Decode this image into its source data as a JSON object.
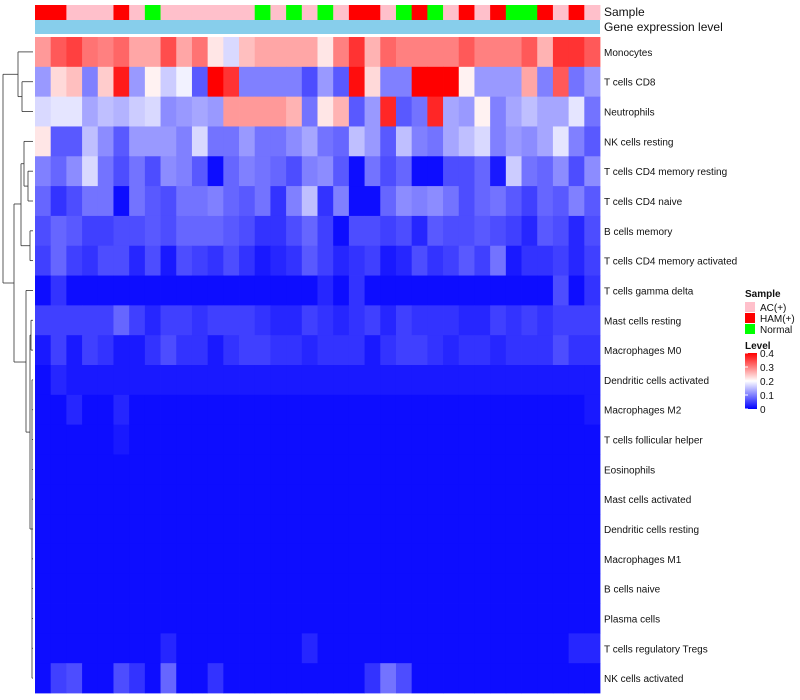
{
  "chart_data": {
    "type": "heatmap",
    "annotation_titles": {
      "sample": "Sample",
      "gene": "Gene expression level"
    },
    "sample_groups": [
      "HAM(+)",
      "HAM(+)",
      "AC(+)",
      "AC(+)",
      "AC(+)",
      "HAM(+)",
      "AC(+)",
      "Normal",
      "AC(+)",
      "AC(+)",
      "AC(+)",
      "AC(+)",
      "AC(+)",
      "AC(+)",
      "Normal",
      "AC(+)",
      "Normal",
      "AC(+)",
      "Normal",
      "AC(+)",
      "HAM(+)",
      "HAM(+)",
      "AC(+)",
      "Normal",
      "HAM(+)",
      "Normal",
      "AC(+)",
      "HAM(+)",
      "AC(+)",
      "HAM(+)",
      "Normal",
      "Normal",
      "HAM(+)",
      "AC(+)",
      "HAM(+)",
      "AC(+)"
    ],
    "rows": [
      {
        "name": "Monocytes",
        "values": [
          0.28,
          0.33,
          0.35,
          0.31,
          0.3,
          0.32,
          0.27,
          0.27,
          0.34,
          0.27,
          0.31,
          0.22,
          0.17,
          0.25,
          0.27,
          0.27,
          0.27,
          0.27,
          0.22,
          0.3,
          0.36,
          0.26,
          0.32,
          0.3,
          0.3,
          0.3,
          0.3,
          0.33,
          0.3,
          0.3,
          0.3,
          0.33,
          0.26,
          0.36,
          0.36,
          0.33
        ]
      },
      {
        "name": "T cells CD8",
        "values": [
          0.12,
          0.23,
          0.25,
          0.1,
          0.24,
          0.38,
          0.12,
          0.21,
          0.16,
          0.19,
          0.07,
          0.4,
          0.36,
          0.1,
          0.1,
          0.1,
          0.1,
          0.06,
          0.12,
          0.07,
          0.39,
          0.23,
          0.1,
          0.1,
          0.4,
          0.4,
          0.4,
          0.21,
          0.12,
          0.12,
          0.12,
          0.27,
          0.1,
          0.33,
          0.09,
          0.12
        ]
      },
      {
        "name": "Neutrophils",
        "values": [
          0.17,
          0.18,
          0.18,
          0.13,
          0.15,
          0.14,
          0.16,
          0.17,
          0.11,
          0.12,
          0.13,
          0.12,
          0.28,
          0.28,
          0.28,
          0.28,
          0.26,
          0.09,
          0.22,
          0.26,
          0.07,
          0.12,
          0.37,
          0.07,
          0.09,
          0.37,
          0.13,
          0.12,
          0.21,
          0.1,
          0.13,
          0.15,
          0.13,
          0.13,
          0.18,
          0.09
        ]
      },
      {
        "name": "NK cells resting",
        "values": [
          0.22,
          0.07,
          0.07,
          0.15,
          0.11,
          0.07,
          0.12,
          0.12,
          0.12,
          0.1,
          0.17,
          0.09,
          0.09,
          0.12,
          0.09,
          0.09,
          0.11,
          0.13,
          0.09,
          0.08,
          0.15,
          0.12,
          0.07,
          0.15,
          0.1,
          0.09,
          0.13,
          0.15,
          0.17,
          0.1,
          0.12,
          0.11,
          0.13,
          0.18,
          0.1,
          0.07
        ]
      },
      {
        "name": "T cells CD4 memory resting",
        "values": [
          0.1,
          0.08,
          0.11,
          0.17,
          0.09,
          0.06,
          0.09,
          0.06,
          0.11,
          0.1,
          0.07,
          0.01,
          0.08,
          0.1,
          0.09,
          0.08,
          0.06,
          0.1,
          0.11,
          0.07,
          0.01,
          0.09,
          0.06,
          0.08,
          0.01,
          0.01,
          0.06,
          0.06,
          0.08,
          0.02,
          0.16,
          0.09,
          0.08,
          0.11,
          0.06,
          0.11
        ]
      },
      {
        "name": "T cells CD4 naive",
        "values": [
          0.08,
          0.04,
          0.06,
          0.09,
          0.09,
          0.01,
          0.09,
          0.07,
          0.06,
          0.09,
          0.09,
          0.1,
          0.08,
          0.07,
          0.09,
          0.04,
          0.1,
          0.15,
          0.04,
          0.1,
          0.01,
          0.01,
          0.08,
          0.11,
          0.1,
          0.11,
          0.09,
          0.06,
          0.08,
          0.09,
          0.07,
          0.05,
          0.08,
          0.07,
          0.1,
          0.07
        ]
      },
      {
        "name": "B cells memory",
        "values": [
          0.06,
          0.08,
          0.07,
          0.05,
          0.05,
          0.06,
          0.06,
          0.07,
          0.06,
          0.08,
          0.08,
          0.08,
          0.07,
          0.06,
          0.04,
          0.04,
          0.06,
          0.08,
          0.05,
          0.01,
          0.06,
          0.06,
          0.05,
          0.06,
          0.03,
          0.07,
          0.06,
          0.06,
          0.07,
          0.06,
          0.05,
          0.03,
          0.07,
          0.06,
          0.03,
          0.06
        ]
      },
      {
        "name": "T cells CD4 memory activated",
        "values": [
          0.05,
          0.08,
          0.05,
          0.04,
          0.06,
          0.06,
          0.03,
          0.06,
          0.02,
          0.06,
          0.05,
          0.04,
          0.06,
          0.04,
          0.02,
          0.03,
          0.04,
          0.07,
          0.05,
          0.03,
          0.04,
          0.05,
          0.02,
          0.03,
          0.06,
          0.04,
          0.05,
          0.07,
          0.05,
          0.09,
          0.02,
          0.04,
          0.04,
          0.05,
          0.03,
          0.05
        ]
      },
      {
        "name": "T cells gamma delta",
        "values": [
          0.01,
          0.04,
          0.01,
          0.01,
          0.01,
          0.01,
          0.01,
          0.01,
          0.01,
          0.01,
          0.01,
          0.01,
          0.01,
          0.01,
          0.01,
          0.01,
          0.01,
          0.01,
          0.03,
          0.01,
          0.04,
          0.01,
          0.01,
          0.01,
          0.01,
          0.01,
          0.01,
          0.01,
          0.01,
          0.01,
          0.01,
          0.01,
          0.01,
          0.06,
          0.01,
          0.04
        ]
      },
      {
        "name": "Mast cells resting",
        "values": [
          0.05,
          0.05,
          0.05,
          0.05,
          0.05,
          0.08,
          0.05,
          0.03,
          0.05,
          0.05,
          0.04,
          0.05,
          0.05,
          0.05,
          0.04,
          0.03,
          0.03,
          0.05,
          0.04,
          0.03,
          0.04,
          0.05,
          0.03,
          0.05,
          0.04,
          0.04,
          0.04,
          0.03,
          0.03,
          0.05,
          0.04,
          0.05,
          0.04,
          0.05,
          0.05,
          0.05
        ]
      },
      {
        "name": "Macrophages M0",
        "values": [
          0.02,
          0.05,
          0.02,
          0.05,
          0.04,
          0.02,
          0.02,
          0.04,
          0.06,
          0.04,
          0.04,
          0.02,
          0.04,
          0.05,
          0.05,
          0.04,
          0.04,
          0.03,
          0.04,
          0.04,
          0.04,
          0.02,
          0.04,
          0.05,
          0.05,
          0.04,
          0.03,
          0.04,
          0.04,
          0.03,
          0.04,
          0.04,
          0.04,
          0.06,
          0.04,
          0.04
        ]
      },
      {
        "name": "Dendritic cells activated",
        "values": [
          0.01,
          0.03,
          0.02,
          0.02,
          0.02,
          0.02,
          0.02,
          0.02,
          0.02,
          0.02,
          0.02,
          0.02,
          0.02,
          0.02,
          0.02,
          0.02,
          0.02,
          0.02,
          0.02,
          0.02,
          0.02,
          0.02,
          0.02,
          0.02,
          0.02,
          0.02,
          0.02,
          0.02,
          0.02,
          0.02,
          0.02,
          0.02,
          0.02,
          0.02,
          0.02,
          0.02
        ]
      },
      {
        "name": "Macrophages M2",
        "values": [
          0.01,
          0.01,
          0.03,
          0.01,
          0.01,
          0.03,
          0.01,
          0.01,
          0.01,
          0.01,
          0.01,
          0.01,
          0.01,
          0.01,
          0.01,
          0.01,
          0.01,
          0.01,
          0.01,
          0.01,
          0.01,
          0.01,
          0.01,
          0.01,
          0.01,
          0.01,
          0.01,
          0.01,
          0.01,
          0.01,
          0.01,
          0.01,
          0.01,
          0.01,
          0.01,
          0.02
        ]
      },
      {
        "name": "T cells follicular helper",
        "values": [
          0.01,
          0.01,
          0.01,
          0.01,
          0.01,
          0.02,
          0.01,
          0.01,
          0.01,
          0.01,
          0.01,
          0.01,
          0.01,
          0.01,
          0.01,
          0.01,
          0.01,
          0.01,
          0.01,
          0.01,
          0.01,
          0.01,
          0.01,
          0.01,
          0.01,
          0.01,
          0.01,
          0.01,
          0.01,
          0.01,
          0.01,
          0.01,
          0.01,
          0.01,
          0.01,
          0.01
        ]
      },
      {
        "name": "Eosinophils",
        "values": [
          0.01,
          0.01,
          0.01,
          0.01,
          0.01,
          0.01,
          0.01,
          0.01,
          0.01,
          0.01,
          0.01,
          0.01,
          0.01,
          0.01,
          0.01,
          0.01,
          0.01,
          0.01,
          0.01,
          0.01,
          0.01,
          0.01,
          0.01,
          0.01,
          0.01,
          0.01,
          0.01,
          0.01,
          0.01,
          0.01,
          0.01,
          0.01,
          0.01,
          0.01,
          0.01,
          0.01
        ]
      },
      {
        "name": "Mast cells activated",
        "values": [
          0.01,
          0.01,
          0.01,
          0.01,
          0.01,
          0.01,
          0.01,
          0.01,
          0.01,
          0.01,
          0.01,
          0.01,
          0.01,
          0.01,
          0.01,
          0.01,
          0.01,
          0.01,
          0.01,
          0.01,
          0.01,
          0.01,
          0.01,
          0.01,
          0.01,
          0.01,
          0.01,
          0.01,
          0.01,
          0.01,
          0.01,
          0.01,
          0.01,
          0.01,
          0.01,
          0.01
        ]
      },
      {
        "name": "Dendritic cells resting",
        "values": [
          0.01,
          0.01,
          0.01,
          0.01,
          0.01,
          0.01,
          0.01,
          0.01,
          0.01,
          0.01,
          0.01,
          0.01,
          0.01,
          0.01,
          0.01,
          0.01,
          0.01,
          0.01,
          0.01,
          0.01,
          0.01,
          0.01,
          0.01,
          0.01,
          0.01,
          0.01,
          0.01,
          0.01,
          0.01,
          0.01,
          0.01,
          0.01,
          0.01,
          0.01,
          0.01,
          0.01
        ]
      },
      {
        "name": "Macrophages M1",
        "values": [
          0.01,
          0.01,
          0.01,
          0.01,
          0.01,
          0.01,
          0.01,
          0.01,
          0.01,
          0.01,
          0.01,
          0.01,
          0.01,
          0.01,
          0.01,
          0.01,
          0.01,
          0.01,
          0.01,
          0.01,
          0.01,
          0.01,
          0.01,
          0.01,
          0.01,
          0.01,
          0.01,
          0.01,
          0.01,
          0.01,
          0.01,
          0.01,
          0.01,
          0.01,
          0.01,
          0.01
        ]
      },
      {
        "name": "B cells naive",
        "values": [
          0.01,
          0.01,
          0.01,
          0.01,
          0.01,
          0.01,
          0.01,
          0.01,
          0.01,
          0.01,
          0.01,
          0.01,
          0.01,
          0.01,
          0.01,
          0.01,
          0.01,
          0.01,
          0.01,
          0.01,
          0.01,
          0.01,
          0.01,
          0.01,
          0.01,
          0.01,
          0.01,
          0.01,
          0.01,
          0.01,
          0.01,
          0.01,
          0.01,
          0.01,
          0.01,
          0.01
        ]
      },
      {
        "name": "Plasma cells",
        "values": [
          0.01,
          0.01,
          0.01,
          0.01,
          0.01,
          0.01,
          0.01,
          0.01,
          0.01,
          0.01,
          0.01,
          0.01,
          0.01,
          0.01,
          0.01,
          0.01,
          0.01,
          0.01,
          0.01,
          0.01,
          0.01,
          0.01,
          0.01,
          0.01,
          0.01,
          0.01,
          0.01,
          0.01,
          0.01,
          0.01,
          0.01,
          0.01,
          0.01,
          0.01,
          0.01,
          0.01
        ]
      },
      {
        "name": "T cells regulatory  Tregs",
        "values": [
          0.01,
          0.01,
          0.01,
          0.01,
          0.01,
          0.01,
          0.01,
          0.01,
          0.03,
          0.01,
          0.01,
          0.01,
          0.01,
          0.01,
          0.01,
          0.01,
          0.01,
          0.03,
          0.01,
          0.01,
          0.01,
          0.01,
          0.01,
          0.01,
          0.01,
          0.01,
          0.01,
          0.01,
          0.01,
          0.01,
          0.01,
          0.01,
          0.01,
          0.01,
          0.03,
          0.03
        ]
      },
      {
        "name": "NK cells activated",
        "values": [
          0.01,
          0.05,
          0.06,
          0.01,
          0.01,
          0.06,
          0.04,
          0.01,
          0.08,
          0.01,
          0.01,
          0.04,
          0.01,
          0.01,
          0.01,
          0.01,
          0.01,
          0.01,
          0.01,
          0.01,
          0.01,
          0.04,
          0.09,
          0.06,
          0.01,
          0.01,
          0.01,
          0.01,
          0.01,
          0.01,
          0.01,
          0.01,
          0.01,
          0.01,
          0.01,
          0.01
        ]
      }
    ],
    "legend": {
      "sample_title": "Sample",
      "sample_entries": [
        {
          "label": "AC(+)",
          "color": "#ffc0cb"
        },
        {
          "label": "HAM(+)",
          "color": "#ff0000"
        },
        {
          "label": "Normal",
          "color": "#00ff00"
        }
      ],
      "level_title": "Level",
      "level_ticks": [
        "0.4",
        "0.3",
        "0.2",
        "0.1",
        "0"
      ],
      "level_range": [
        0,
        0.4
      ]
    },
    "colors": {
      "low": "#0000ff",
      "mid": "#ffffff",
      "high": "#ff0000",
      "gene_bar": "#87ceeb"
    }
  }
}
